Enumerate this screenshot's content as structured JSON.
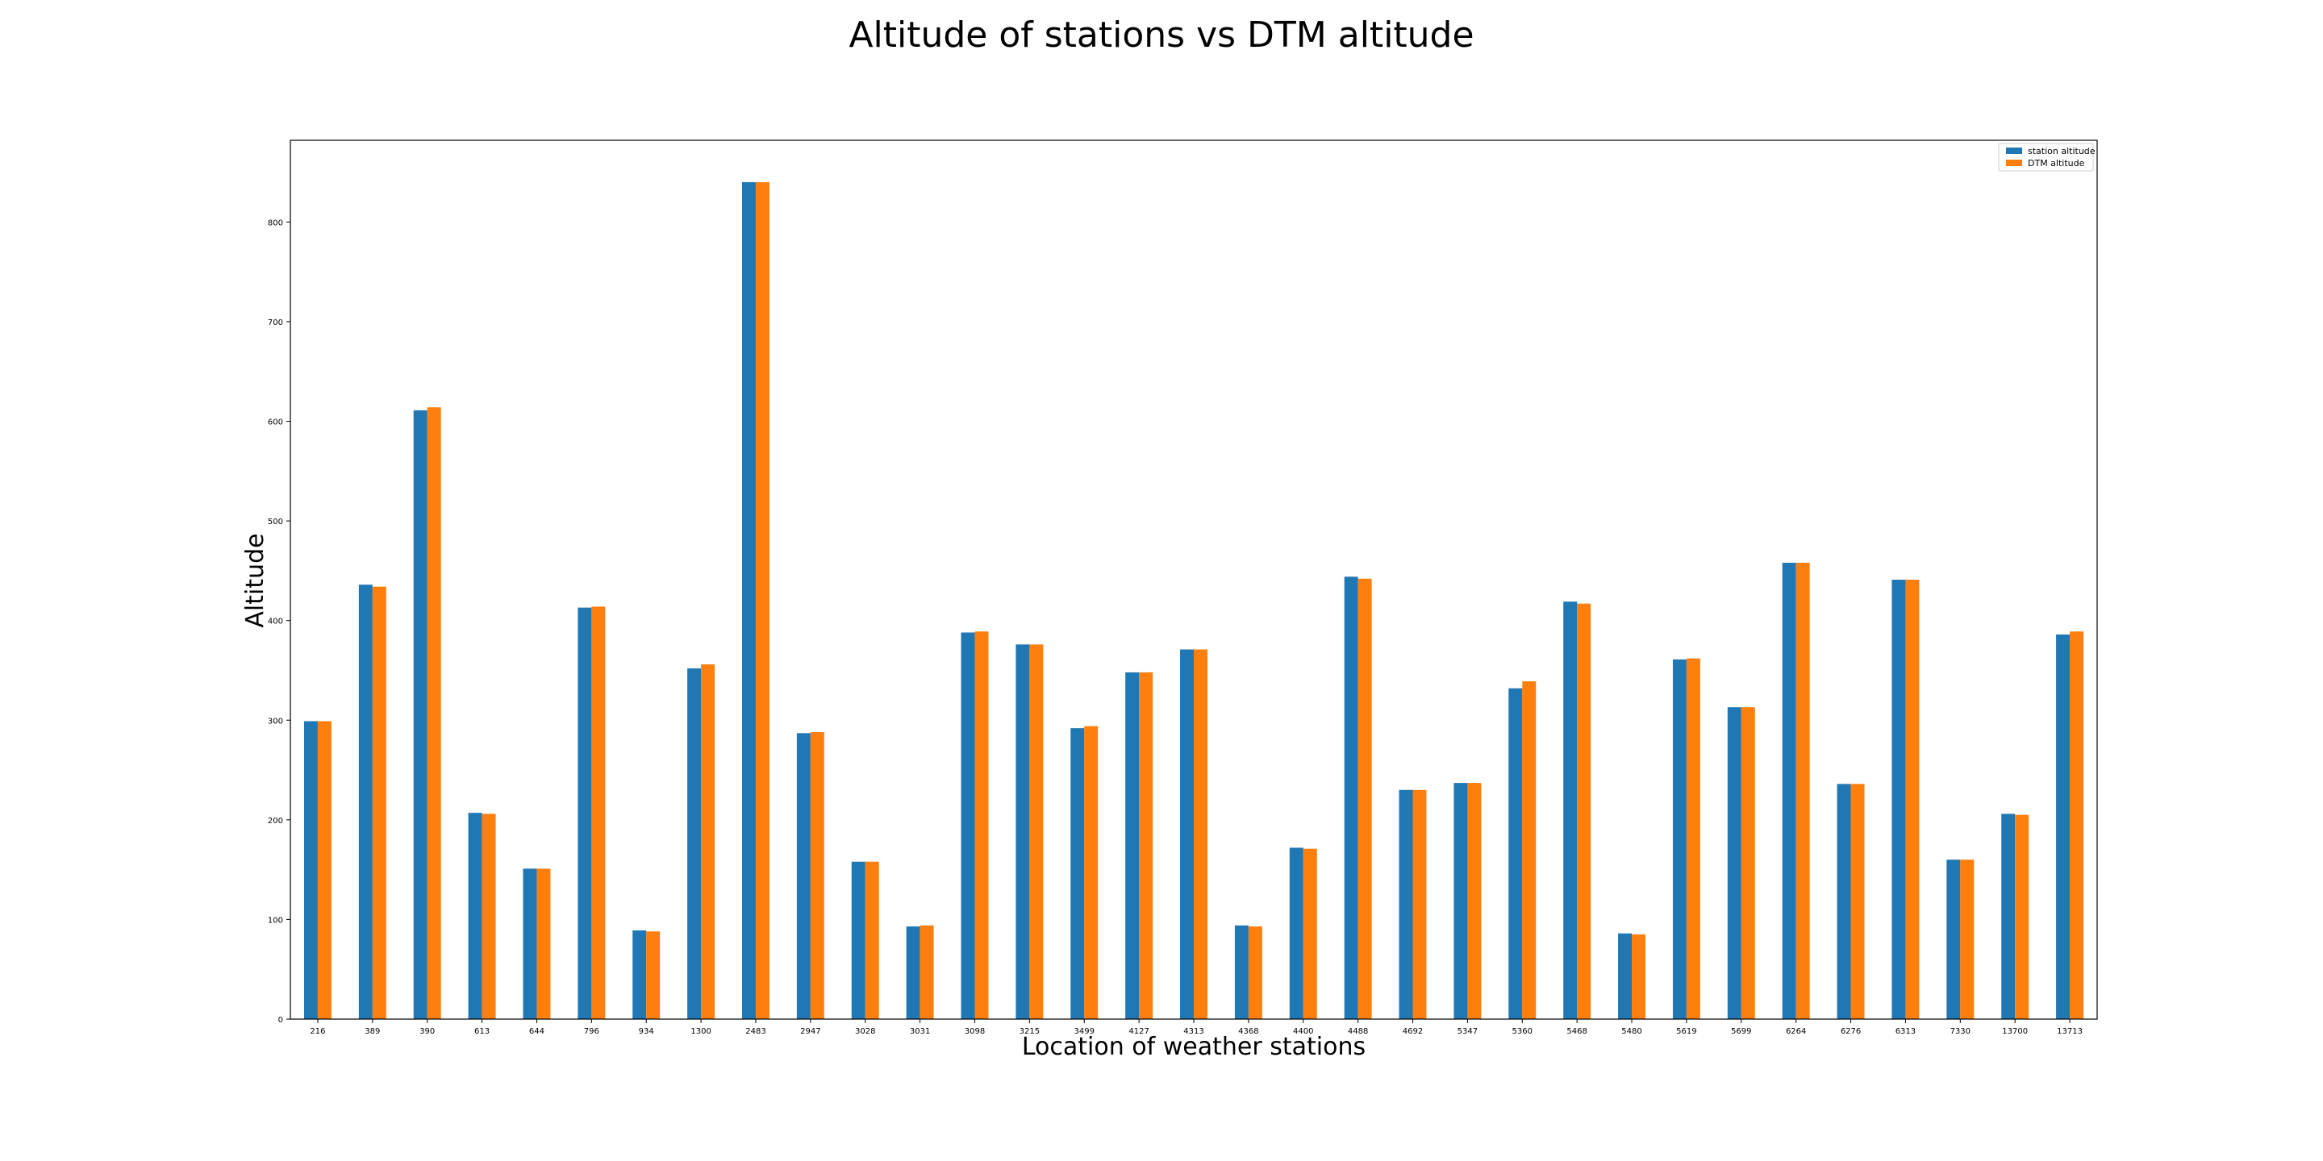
{
  "chart_data": {
    "type": "bar",
    "title": "Altitude of stations vs DTM altitude",
    "xlabel": "Location of weather stations",
    "ylabel": "Altitude",
    "ylim": [
      0,
      882
    ],
    "yticks": [
      0,
      100,
      200,
      300,
      400,
      500,
      600,
      700,
      800
    ],
    "grid": false,
    "legend_position": "top-right",
    "categories": [
      "216",
      "389",
      "390",
      "613",
      "644",
      "796",
      "934",
      "1300",
      "2483",
      "2947",
      "3028",
      "3031",
      "3098",
      "3215",
      "3499",
      "4127",
      "4313",
      "4368",
      "4400",
      "4488",
      "4692",
      "5347",
      "5360",
      "5468",
      "5480",
      "5619",
      "5699",
      "6264",
      "6276",
      "6313",
      "7330",
      "13700",
      "13713"
    ],
    "series": [
      {
        "name": "station altitude",
        "color": "#1f77b4",
        "values": [
          299,
          436,
          611,
          207,
          151,
          413,
          89,
          352,
          840,
          287,
          158,
          93,
          388,
          376,
          292,
          348,
          371,
          94,
          172,
          444,
          230,
          237,
          332,
          419,
          86,
          361,
          313,
          458,
          236,
          441,
          160,
          206,
          386
        ]
      },
      {
        "name": "DTM altitude",
        "color": "#ff7f0e",
        "values": [
          299,
          434,
          614,
          206,
          151,
          414,
          88,
          356,
          840,
          288,
          158,
          94,
          389,
          376,
          294,
          348,
          371,
          93,
          171,
          442,
          230,
          237,
          339,
          417,
          85,
          362,
          313,
          458,
          236,
          441,
          160,
          205,
          389
        ]
      }
    ]
  }
}
